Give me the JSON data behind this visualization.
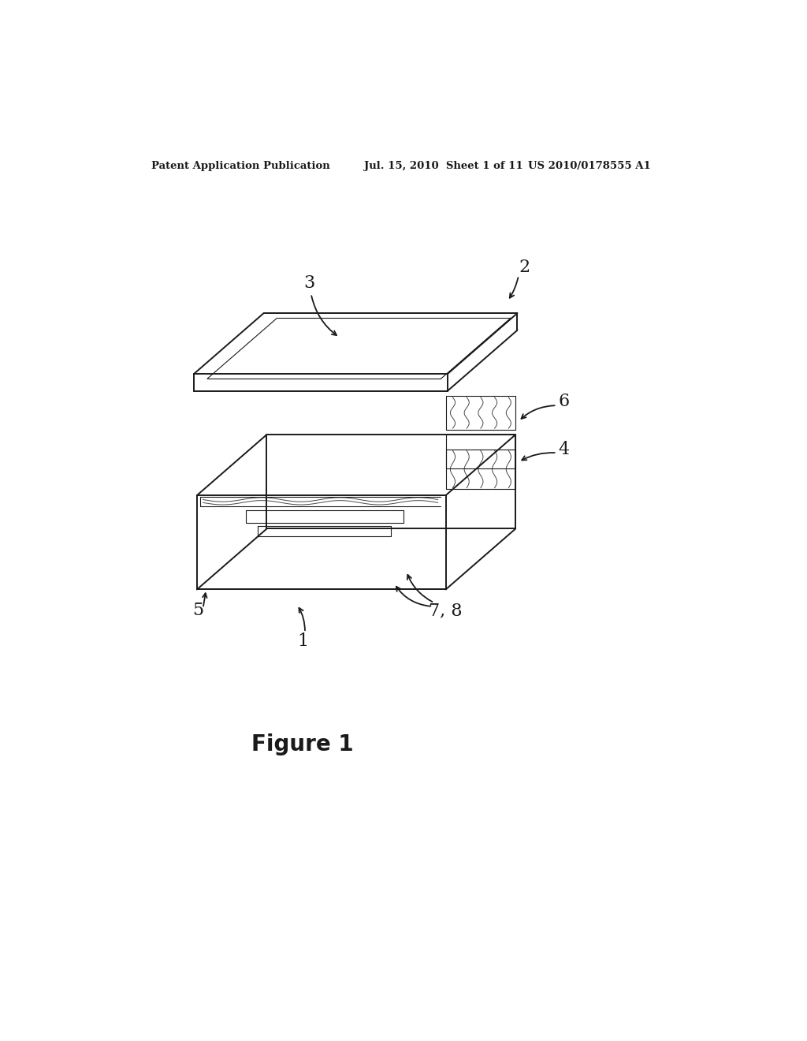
{
  "bg_color": "#ffffff",
  "line_color": "#1a1a1a",
  "header_left": "Patent Application Publication",
  "header_center": "Jul. 15, 2010  Sheet 1 of 11",
  "header_right": "US 2010/0178555 A1",
  "figure_label": "Figure 1",
  "lw_main": 1.4,
  "lw_thin": 0.8
}
